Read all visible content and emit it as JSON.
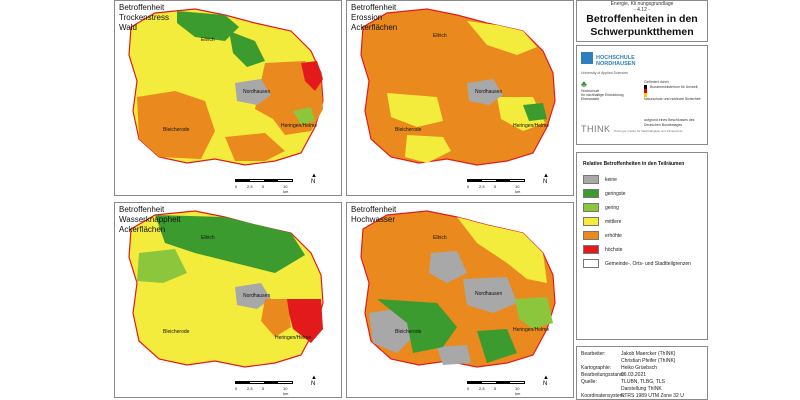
{
  "colors": {
    "keine": "#a8a8a8",
    "geringste": "#3b9b2e",
    "gering": "#8cc63c",
    "mittlere": "#f4ec3c",
    "erhoehte": "#ea8a1e",
    "hoechste": "#e31a1c",
    "boundary": "#e31a1c"
  },
  "header": {
    "subtitle_prefix": "Energie, Kli",
    "subtitle_suffix": "nungsgrundlage",
    "subtitle_code": "- 4.12 -",
    "title": "Betroffenheiten in den Schwerpunktthemen"
  },
  "maps": [
    {
      "title": "Betroffenheit\nTrockenstress\nWald",
      "base": "mittlere",
      "areas": [
        "geringste",
        "mittlere",
        "erhoehte",
        "keine",
        "hoechste"
      ]
    },
    {
      "title": "Betroffenheit\nErossion\nAckerflächen",
      "base": "erhoehte",
      "areas": [
        "mittlere",
        "keine",
        "geringste",
        "mittlere"
      ]
    },
    {
      "title": "Betroffenheit\nWasserknappheit\nAckerflächen",
      "base": "mittlere",
      "areas": [
        "geringste",
        "gering",
        "keine",
        "hoechste",
        "erhoehte"
      ]
    },
    {
      "title": "Betroffenheit\nHochwasser",
      "base": "erhoehte",
      "areas": [
        "keine",
        "geringste",
        "mittlere",
        "gering"
      ]
    }
  ],
  "places": {
    "ellrich": "Ellrich",
    "nordhausen": "Nordhausen",
    "bleicherode": "Bleicherode",
    "heringen": "Heringen/Helme"
  },
  "scale": {
    "ticks": [
      "0",
      "2,5",
      "5",
      "10 km"
    ],
    "north": "N"
  },
  "logos": {
    "hn_name_1": "HOCHSCHULE",
    "hn_name_2": "NORDHAUSEN",
    "hn_uni": "University of Applied Sciences",
    "ne_line1": "Hochschule",
    "ne_line2": "für nachhaltige Entwicklung",
    "ne_line3": "Eberswalde",
    "funded_by": "Gefördert durch:",
    "ministry": "Bundesministerium für Umwelt, Naturschutz und nukleare Sicherheit",
    "bundestag": "aufgrund eines Beschlusses des Deutschen Bundestages",
    "think": "THINK",
    "think_tag": "Thüringer Institut für Nachhaltigkeit und Klimaschutz"
  },
  "legend": {
    "title": "Relative Betroffenheiten in den Teilräumen",
    "items": [
      {
        "label": "keine",
        "color": "#a8a8a8"
      },
      {
        "label": "geringste",
        "color": "#3b9b2e"
      },
      {
        "label": "gering",
        "color": "#8cc63c"
      },
      {
        "label": "mittlere",
        "color": "#f4ec3c"
      },
      {
        "label": "erhöhte",
        "color": "#ea8a1e"
      },
      {
        "label": "höchste",
        "color": "#e31a1c"
      },
      {
        "label": "Gemeinde-, Orts- und Stadtteilgrenzen",
        "color": "#ffffff"
      }
    ]
  },
  "info": [
    {
      "label": "Bearbeiter:",
      "value": "Jakob Maercker (ThINK)"
    },
    {
      "label": "",
      "value": "Christian Pfeifer (ThINK)"
    },
    {
      "label": "Kartographie:",
      "value": "Heiko Grüebsch"
    },
    {
      "label": "Bearbeitungsstand:",
      "value": "06.03.2021"
    },
    {
      "label": "Quelle:",
      "value": "TLUBN, TLBG, TLS"
    },
    {
      "label": "",
      "value": "Darstellung ThINK"
    },
    {
      "label": "Koordinatensystem:",
      "value": "ETRS 1989 UTM Zone 32 U"
    }
  ]
}
